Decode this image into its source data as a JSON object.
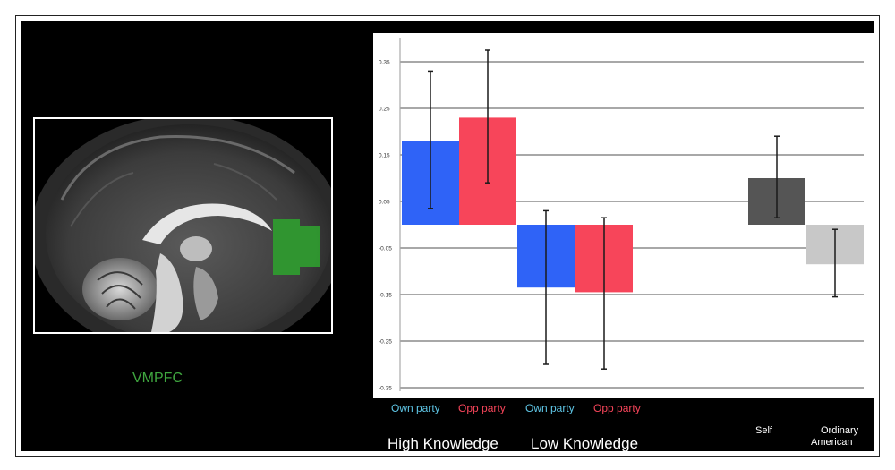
{
  "brain_panel": {
    "roi_label": "VMPFC",
    "roi_color": "#3fa63f"
  },
  "chart_data": {
    "type": "bar",
    "title": "",
    "xlabel": "",
    "ylabel": "",
    "ylim": [
      -0.35,
      0.35
    ],
    "grid": true,
    "y_ticks": [
      "0.35",
      "0.25",
      "0.15",
      "0.05",
      "-0.05",
      "-0.15",
      "-0.25",
      "-0.35"
    ],
    "bars": [
      {
        "label": "Own party",
        "group": "High Knowledge",
        "value": 0.18,
        "error_low": 0.035,
        "error_high": 0.33,
        "color": "#2f63f7",
        "label_color": "#5fc6e6"
      },
      {
        "label": "Opp party",
        "group": "High Knowledge",
        "value": 0.23,
        "error_low": 0.09,
        "error_high": 0.375,
        "color": "#f7455a",
        "label_color": "#f7455a"
      },
      {
        "label": "Own party",
        "group": "Low Knowledge",
        "value": -0.135,
        "error_low": -0.3,
        "error_high": 0.03,
        "color": "#2f63f7",
        "label_color": "#5fc6e6"
      },
      {
        "label": "Opp party",
        "group": "Low Knowledge",
        "value": -0.145,
        "error_low": -0.31,
        "error_high": 0.015,
        "color": "#f7455a",
        "label_color": "#f7455a"
      },
      {
        "label": "Self",
        "group": "",
        "value": 0.1,
        "error_low": 0.015,
        "error_high": 0.19,
        "color": "#555555",
        "label_color": "#ffffff"
      },
      {
        "label": "Ordinary American",
        "group": "",
        "value": -0.085,
        "error_low": -0.155,
        "error_high": -0.01,
        "color": "#c8c8c8",
        "label_color": "#ffffff"
      }
    ],
    "groups": [
      "High Knowledge",
      "Low Knowledge"
    ],
    "bottom_labels": {
      "self": "Self",
      "ordinary_line1": "Ordinary",
      "ordinary_line2": "American"
    }
  }
}
